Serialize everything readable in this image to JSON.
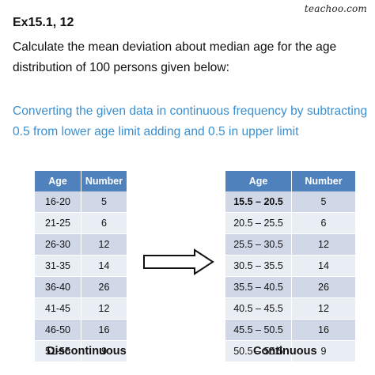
{
  "brand": "teachoo.com",
  "exercise_title": "Ex15.1,  12",
  "question": "Calculate the mean deviation about median age for the age distribution of 100 persons given below:",
  "note": "Converting the given data in continuous frequency by subtracting 0.5 from lower age limit adding and 0.5 in upper limit",
  "colors": {
    "header_blue": "#4f81bd",
    "row_dark": "#d0d8e8",
    "row_light": "#e9edf4",
    "note_blue": "#3a8fd0"
  },
  "left_table": {
    "headers": [
      "Age",
      "Number"
    ],
    "rows": [
      [
        "16-20",
        "5"
      ],
      [
        "21-25",
        "6"
      ],
      [
        "26-30",
        "12"
      ],
      [
        "31-35",
        "14"
      ],
      [
        "36-40",
        "26"
      ],
      [
        "41-45",
        "12"
      ],
      [
        "46-50",
        "16"
      ],
      [
        "51-55",
        "9"
      ]
    ],
    "caption": "Discontinuous"
  },
  "arrow_icon": "right-arrow-icon",
  "right_table": {
    "headers": [
      "Age",
      "Number"
    ],
    "rows": [
      [
        "15.5 – 20.5",
        "5"
      ],
      [
        "20.5 – 25.5",
        "6"
      ],
      [
        "25.5 – 30.5",
        "12"
      ],
      [
        "30.5 – 35.5",
        "14"
      ],
      [
        "35.5 – 40.5",
        "26"
      ],
      [
        "40.5 – 45.5",
        "12"
      ],
      [
        "45.5 – 50.5",
        "16"
      ],
      [
        "50.5 – 55.5",
        "9"
      ]
    ],
    "caption": "Continuous"
  }
}
